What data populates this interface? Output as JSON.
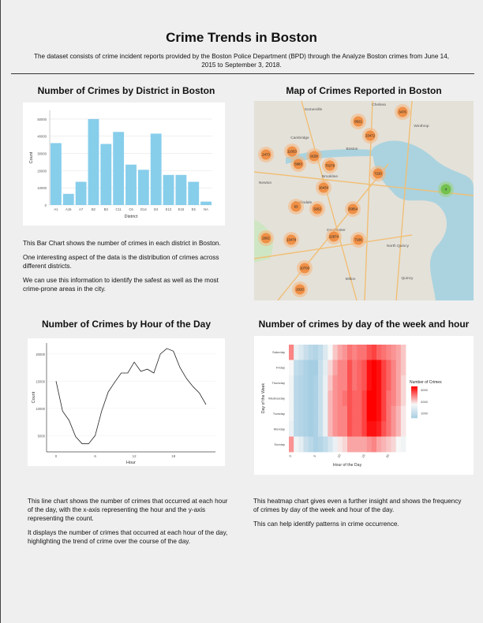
{
  "page": {
    "title": "Crime Trends in Boston",
    "subtitle": "The dataset consists of crime incident reports provided by the Boston Police Department (BPD) through the Analyze Boston crimes from June 14, 2015 to September 3, 2018."
  },
  "sections": {
    "district": {
      "heading": "Number of Crimes by District in Boston",
      "text": [
        "This Bar Chart shows the number of crimes in each district in Boston.",
        "One interesting aspect of the data is the distribution of crimes across different districts.",
        "We can use this information to identify the safest as well as the most crime-prone areas in the city."
      ]
    },
    "map": {
      "heading": "Map of Crimes Reported in Boston",
      "cluster_counts": [
        "3476",
        "9621",
        "23472",
        "2473",
        "11053",
        "9158",
        "70278",
        "7220",
        "5883",
        "16434",
        "63",
        "4",
        "3262",
        "25854",
        "2602",
        "13478",
        "22974",
        "7166",
        "10700",
        "2020"
      ],
      "place_labels": [
        "Somerville",
        "Chelsea",
        "Winthrop",
        "Cambridge",
        "Boston",
        "Brookline",
        "Roslindale",
        "Milton",
        "Quincy",
        "Dorchester",
        "North Quincy",
        "Newton"
      ]
    },
    "hour": {
      "heading": "Number of Crimes by Hour of the Day",
      "text": [
        "This line chart shows the number of crimes that occurred at each hour of the day, with the x-axis representing the hour and the y-axis representing the count.",
        "It displays the number of crimes that occurred at each hour of the day, highlighting the trend of crime over the course of the day."
      ]
    },
    "heat": {
      "heading": "Number of crimes by day of the week and hour",
      "text": [
        "This heatmap chart gives even a further insight and shows the frequency of crimes by day of the week and hour of the day.",
        "This can help identify patterns in crime occurrence."
      ]
    }
  },
  "chart_data": [
    {
      "type": "bar",
      "categories": [
        "A1",
        "A15",
        "A7",
        "B2",
        "B3",
        "C11",
        "C6",
        "D14",
        "D4",
        "E13",
        "E18",
        "E5",
        "NA"
      ],
      "values": [
        36000,
        6500,
        13500,
        50000,
        35500,
        42500,
        23500,
        20500,
        41500,
        17500,
        17500,
        13500,
        2000
      ],
      "xlabel": "District",
      "ylabel": "Count",
      "ylim": [
        0,
        55000
      ],
      "yticks": [
        "0",
        "10000",
        "20000",
        "30000",
        "40000",
        "50000"
      ],
      "color": "#87ceeb",
      "grid": true
    },
    {
      "type": "line",
      "x": [
        0,
        1,
        2,
        3,
        4,
        5,
        6,
        7,
        8,
        9,
        10,
        11,
        12,
        13,
        14,
        15,
        16,
        17,
        18,
        19,
        20,
        21,
        22,
        23
      ],
      "values": [
        15000,
        9500,
        7800,
        4800,
        3500,
        3500,
        5000,
        9500,
        13000,
        14800,
        16500,
        16500,
        18500,
        16800,
        17200,
        16500,
        20000,
        21000,
        20500,
        17500,
        15500,
        14000,
        12800,
        10700
      ],
      "xlabel": "Hour",
      "ylabel": "Count",
      "xticks": [
        "0",
        "6",
        "12",
        "18"
      ],
      "yticks": [
        "5000",
        "10000",
        "15000",
        "20000"
      ],
      "ylim": [
        2000,
        22000
      ],
      "grid": true
    },
    {
      "type": "heatmap",
      "rows": [
        "Saturday",
        "Friday",
        "Thursday",
        "Wednesday",
        "Tuesday",
        "Monday",
        "Sunday"
      ],
      "hours": [
        0,
        1,
        2,
        3,
        4,
        5,
        6,
        7,
        8,
        9,
        10,
        11,
        12,
        13,
        14,
        15,
        16,
        17,
        18,
        19,
        20,
        21,
        22,
        23
      ],
      "xticks": [
        "0",
        "5",
        "10",
        "15",
        "20"
      ],
      "xlabel": "Hour of the Day",
      "ylabel": "Day of the Week",
      "legend_title": "Number of Crimes",
      "legend_ticks": [
        "1000",
        "2000",
        "3000"
      ],
      "low_color": "#a6cee3",
      "mid_color": "#f7f7f7",
      "high_color": "#ff0000",
      "values": [
        [
          2500,
          1600,
          1400,
          1100,
          900,
          800,
          1000,
          1400,
          1800,
          2100,
          2300,
          2400,
          2600,
          2500,
          2600,
          2600,
          2800,
          2900,
          2700,
          2600,
          2500,
          2400,
          2300,
          2100
        ],
        [
          1800,
          1000,
          900,
          700,
          600,
          600,
          1100,
          1500,
          2000,
          2300,
          2500,
          2500,
          2800,
          2600,
          2700,
          2800,
          3200,
          3300,
          3200,
          2900,
          2700,
          2500,
          2300,
          2100
        ],
        [
          1700,
          900,
          800,
          700,
          600,
          700,
          1100,
          1600,
          2100,
          2400,
          2500,
          2500,
          2800,
          2600,
          2700,
          2800,
          3200,
          3300,
          3200,
          2900,
          2700,
          2500,
          2300,
          2000
        ],
        [
          1700,
          900,
          800,
          700,
          600,
          700,
          1100,
          1600,
          2200,
          2400,
          2500,
          2600,
          2800,
          2700,
          2700,
          2900,
          3300,
          3400,
          3200,
          2900,
          2600,
          2500,
          2300,
          2000
        ],
        [
          1700,
          900,
          800,
          700,
          600,
          700,
          1100,
          1600,
          2200,
          2400,
          2500,
          2500,
          2800,
          2700,
          2700,
          2900,
          3300,
          3300,
          3200,
          2900,
          2600,
          2400,
          2200,
          1900
        ],
        [
          1600,
          900,
          800,
          700,
          600,
          700,
          1100,
          1600,
          2200,
          2400,
          2500,
          2500,
          2800,
          2700,
          2700,
          2900,
          3200,
          3200,
          3100,
          2800,
          2600,
          2400,
          2200,
          1900
        ],
        [
          2400,
          1700,
          1500,
          1100,
          900,
          700,
          800,
          1000,
          1300,
          1600,
          1900,
          2000,
          2300,
          2300,
          2300,
          2300,
          2400,
          2500,
          2300,
          2200,
          2100,
          2000,
          1800,
          1700
        ]
      ]
    }
  ]
}
